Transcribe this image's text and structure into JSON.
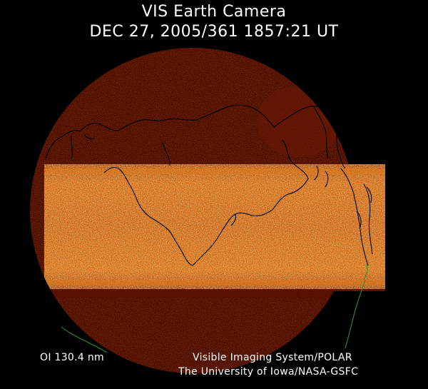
{
  "header": {
    "title": "VIS Earth Camera",
    "timestamp": "DEC 27, 2005/361 1857:21 UT"
  },
  "footer": {
    "filter": "OI  130.4 nm",
    "credit_instrument": "Visible Imaging System/POLAR",
    "credit_institution": "The University of Iowa/NASA-GSFC"
  },
  "colors": {
    "background": "#000000",
    "disk_dark": "#4a0800",
    "band_glow": "#c85a08",
    "band_hot": "#f08a18",
    "coastline": "#000000",
    "coastline_green": "#2e8b2e",
    "text": "#ffffff"
  }
}
